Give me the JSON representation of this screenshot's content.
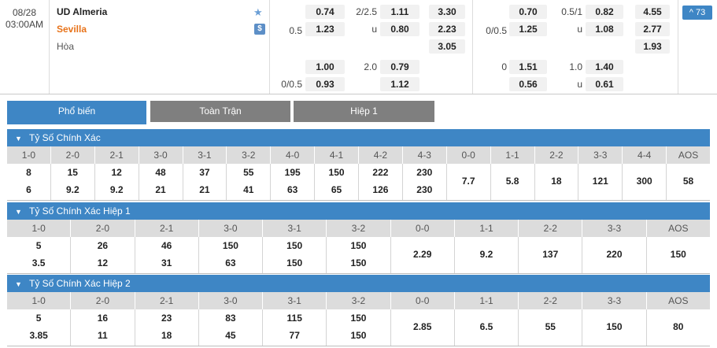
{
  "match": {
    "date": "08/28",
    "time": "03:00AM",
    "home": "UD Almeria",
    "away": "Sevilla",
    "draw": "Hòa",
    "favorite_icon": "star-icon",
    "stream_badge": "$",
    "more_markets": "^ 73",
    "full_time": {
      "hdp_main": {
        "home_line": "",
        "away_line": "0.5",
        "home": "0.74",
        "away": "1.23"
      },
      "ou_main": {
        "line": "2/2.5",
        "under_label": "u",
        "over": "1.11",
        "under": "0.80"
      },
      "x12": {
        "home": "3.30",
        "away": "2.23",
        "draw": "3.05"
      },
      "hdp_alt": {
        "home_line": "",
        "away_line": "0/0.5",
        "home": "1.00",
        "away": "0.93"
      },
      "ou_alt": {
        "line": "2.0",
        "over": "0.79",
        "under": "1.12"
      }
    },
    "first_half": {
      "hdp_main": {
        "home_line": "",
        "away_line": "0/0.5",
        "home": "0.70",
        "away": "1.25"
      },
      "ou_main": {
        "line": "0.5/1",
        "under_label": "u",
        "over": "0.82",
        "under": "1.08"
      },
      "x12": {
        "home": "4.55",
        "away": "2.77",
        "draw": "1.93"
      },
      "hdp_alt": {
        "home_line": "0",
        "away_line": "",
        "home": "1.51",
        "away": "0.56"
      },
      "ou_alt": {
        "line": "1.0",
        "under_label": "u",
        "over": "1.40",
        "under": "0.61"
      }
    }
  },
  "tabs": [
    "Phổ biến",
    "Toàn Trận",
    "Hiệp 1"
  ],
  "active_tab": "Phổ biến",
  "accent_color": "#3e86c5",
  "away_color": "#e8731a",
  "sections": [
    {
      "title": "Tỷ Số Chính Xác",
      "headers": [
        "1-0",
        "2-0",
        "2-1",
        "3-0",
        "3-1",
        "3-2",
        "4-0",
        "4-1",
        "4-2",
        "4-3",
        "0-0",
        "1-1",
        "2-2",
        "3-3",
        "4-4",
        "AOS"
      ],
      "cells": [
        [
          "8",
          "6"
        ],
        [
          "15",
          "9.2"
        ],
        [
          "12",
          "9.2"
        ],
        [
          "48",
          "21"
        ],
        [
          "37",
          "21"
        ],
        [
          "55",
          "41"
        ],
        [
          "195",
          "63"
        ],
        [
          "150",
          "65"
        ],
        [
          "222",
          "126"
        ],
        [
          "230",
          "230"
        ],
        [
          "7.7"
        ],
        [
          "5.8"
        ],
        [
          "18"
        ],
        [
          "121"
        ],
        [
          "300"
        ],
        [
          "58"
        ]
      ]
    },
    {
      "title": "Tỷ Số Chính Xác Hiệp 1",
      "headers": [
        "1-0",
        "2-0",
        "2-1",
        "3-0",
        "3-1",
        "3-2",
        "0-0",
        "1-1",
        "2-2",
        "3-3",
        "AOS"
      ],
      "cells": [
        [
          "5",
          "3.5"
        ],
        [
          "26",
          "12"
        ],
        [
          "46",
          "31"
        ],
        [
          "150",
          "63"
        ],
        [
          "150",
          "150"
        ],
        [
          "150",
          "150"
        ],
        [
          "2.29"
        ],
        [
          "9.2"
        ],
        [
          "137"
        ],
        [
          "220"
        ],
        [
          "150"
        ]
      ]
    },
    {
      "title": "Tỷ Số Chính Xác Hiệp 2",
      "headers": [
        "1-0",
        "2-0",
        "2-1",
        "3-0",
        "3-1",
        "3-2",
        "0-0",
        "1-1",
        "2-2",
        "3-3",
        "AOS"
      ],
      "cells": [
        [
          "5",
          "3.85"
        ],
        [
          "16",
          "11"
        ],
        [
          "23",
          "18"
        ],
        [
          "83",
          "45"
        ],
        [
          "115",
          "77"
        ],
        [
          "150",
          "150"
        ],
        [
          "2.85"
        ],
        [
          "6.5"
        ],
        [
          "55"
        ],
        [
          "150"
        ],
        [
          "80"
        ]
      ]
    }
  ]
}
